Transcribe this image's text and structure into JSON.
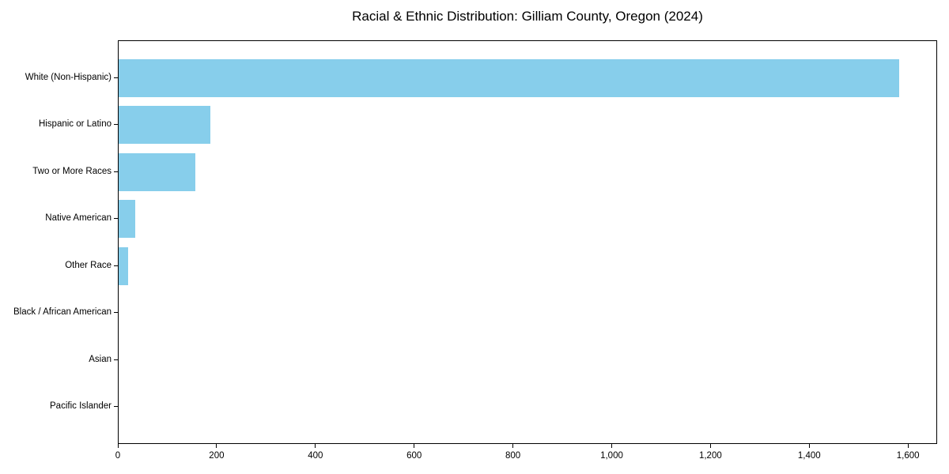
{
  "chart_data": {
    "type": "bar",
    "orientation": "horizontal",
    "title": "Racial & Ethnic Distribution: Gilliam County, Oregon (2024)",
    "categories": [
      "White (Non-Hispanic)",
      "Hispanic or Latino",
      "Two or More Races",
      "Native American",
      "Other Race",
      "Black / African American",
      "Asian",
      "Pacific Islander"
    ],
    "values": [
      1580,
      185,
      155,
      33,
      20,
      0,
      0,
      0
    ],
    "xlabel": "",
    "ylabel": "",
    "xlim": [
      0,
      1659
    ],
    "xtick_values": [
      0,
      200,
      400,
      600,
      800,
      1000,
      1200,
      1400,
      1600
    ],
    "xtick_labels": [
      "0",
      "200",
      "400",
      "600",
      "800",
      "1,000",
      "1,200",
      "1,400",
      "1,600"
    ],
    "bar_color": "#87CEEB",
    "axis_color": "#000000",
    "text_color": "#000000",
    "background_color": "#ffffff",
    "grid": false
  }
}
